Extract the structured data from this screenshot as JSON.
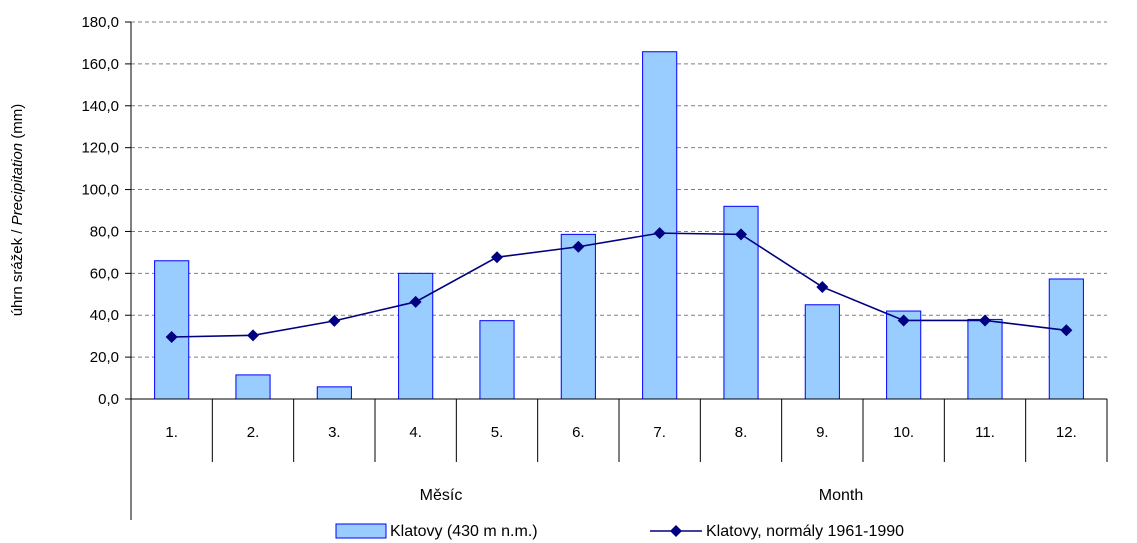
{
  "chart_data": {
    "type": "bar",
    "categories": [
      "1.",
      "2.",
      "3.",
      "4.",
      "5.",
      "6.",
      "7.",
      "8.",
      "9.",
      "10.",
      "11.",
      "12."
    ],
    "series": [
      {
        "name": "Klatovy (430 m n.m.)",
        "type": "bar",
        "color": "#99ccff",
        "values": [
          66.0,
          11.5,
          5.8,
          60.0,
          37.4,
          78.6,
          165.8,
          92.0,
          45.0,
          42.0,
          38.0,
          57.3
        ]
      },
      {
        "name": "Klatovy, normály 1961-1990",
        "type": "line",
        "color": "#000080",
        "marker": "diamond",
        "values": [
          29.6,
          30.4,
          37.3,
          46.4,
          67.7,
          72.7,
          79.2,
          78.6,
          53.5,
          37.5,
          37.5,
          32.8
        ]
      }
    ],
    "ylabel_plain": "úhrn srážek / ",
    "ylabel_italic": "Precipitation",
    "ylabel_unit": " (mm)",
    "ylim": [
      0,
      180
    ],
    "yticks": [
      "0,0",
      "20,0",
      "40,0",
      "60,0",
      "80,0",
      "100,0",
      "120,0",
      "140,0",
      "160,0",
      "180,0"
    ],
    "xlabel_left": "Měsíc",
    "xlabel_right": "Month",
    "grid": true,
    "legend_position": "bottom",
    "legend": [
      "Klatovy (430 m n.m.)",
      "Klatovy, normály 1961-1990"
    ]
  }
}
